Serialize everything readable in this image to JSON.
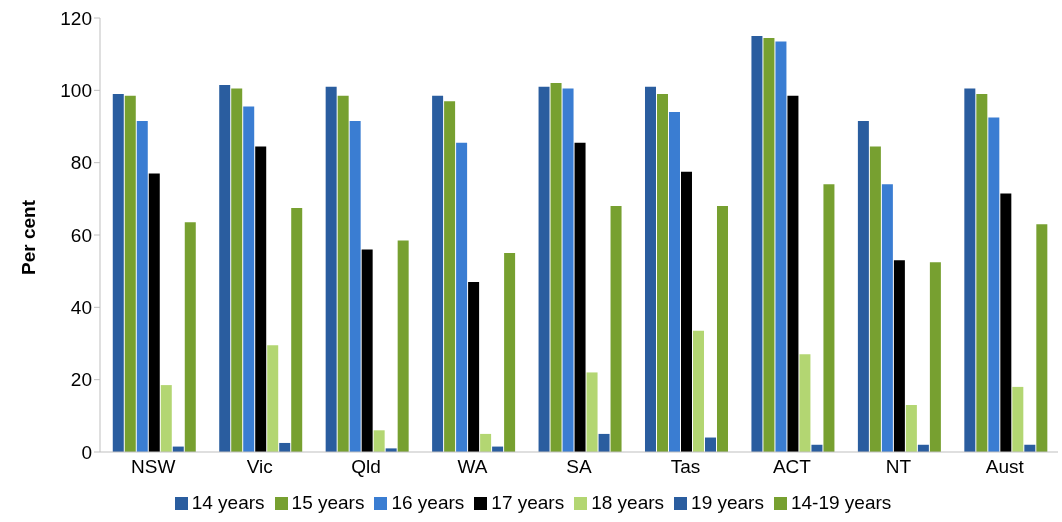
{
  "chart_data": {
    "type": "bar",
    "ylabel": "Per cent",
    "categories": [
      "NSW",
      "Vic",
      "Qld",
      "WA",
      "SA",
      "Tas",
      "ACT",
      "NT",
      "Aust"
    ],
    "series": [
      {
        "name": "14 years",
        "color": "#2a5d9f",
        "values": [
          99,
          101.5,
          101,
          98.5,
          101,
          101,
          115,
          91.5,
          100.5
        ]
      },
      {
        "name": "15 years",
        "color": "#77a030",
        "values": [
          98.5,
          100.5,
          98.5,
          97,
          102,
          99,
          114.5,
          84.5,
          99
        ]
      },
      {
        "name": "16 years",
        "color": "#3a7dd2",
        "values": [
          91.5,
          95.5,
          91.5,
          85.5,
          100.5,
          94,
          113.5,
          74,
          92.5
        ]
      },
      {
        "name": "17 years",
        "color": "#000000",
        "values": [
          77,
          84.5,
          56,
          47,
          85.5,
          77.5,
          98.5,
          53,
          71.5
        ]
      },
      {
        "name": "18 years",
        "color": "#b3d672",
        "values": [
          18.5,
          29.5,
          6,
          5,
          22,
          33.5,
          27,
          13,
          18
        ]
      },
      {
        "name": "19 years",
        "color": "#2a5d9f",
        "values": [
          1.5,
          2.5,
          1,
          1.5,
          5,
          4,
          2,
          2,
          2
        ]
      },
      {
        "name": "14-19 years",
        "color": "#77a030",
        "values": [
          63.5,
          67.5,
          58.5,
          55,
          68,
          68,
          74,
          52.5,
          63
        ]
      }
    ],
    "ylim": [
      0,
      120
    ],
    "yticks": [
      0,
      20,
      40,
      60,
      80,
      100,
      120
    ],
    "grid": false,
    "legend": "bottom"
  }
}
